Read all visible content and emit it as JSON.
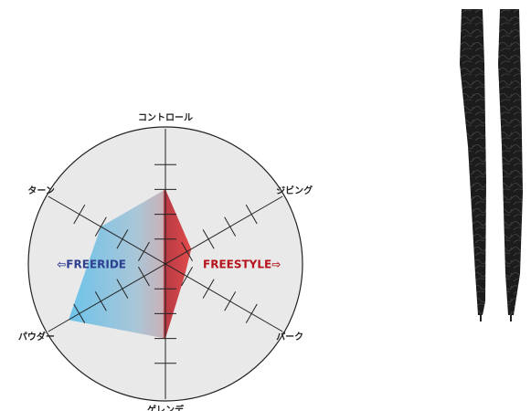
{
  "chart_data": {
    "type": "radar",
    "categories": [
      "コントロール",
      "ジビング",
      "パーク",
      "ゲレンデ",
      "パウダー",
      "ターン"
    ],
    "values": [
      3,
      1.2,
      0.9,
      3,
      4.5,
      3
    ],
    "ylim": [
      0,
      5
    ],
    "yticks": [
      1,
      2,
      3,
      4
    ],
    "annotations": [
      {
        "text": "⇦FREERIDE",
        "color": "#2e3f8f"
      },
      {
        "text": "FREESTYLE⇨",
        "color": "#b5121b"
      }
    ]
  }
}
